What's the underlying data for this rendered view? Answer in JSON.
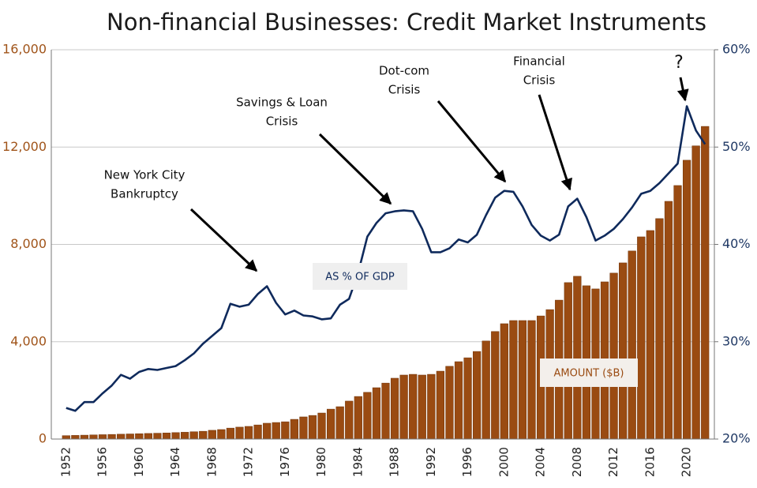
{
  "chart_data": {
    "type": "bar",
    "title": "Non-financial Businesses: Credit Market Instruments",
    "categories": [
      "1952",
      null,
      null,
      null,
      "1956",
      null,
      null,
      null,
      "1960",
      null,
      null,
      null,
      "1964",
      null,
      null,
      null,
      "1968",
      null,
      null,
      null,
      "1972",
      null,
      null,
      null,
      "1976",
      null,
      null,
      null,
      "1980",
      null,
      null,
      null,
      "1984",
      null,
      null,
      null,
      "1988",
      null,
      null,
      null,
      "1992",
      null,
      null,
      null,
      "1996",
      null,
      null,
      null,
      "2000",
      null,
      null,
      null,
      "2004",
      null,
      null,
      null,
      "2008",
      null,
      null,
      null,
      "2012",
      null,
      null,
      null,
      "2016",
      null,
      null,
      null,
      "2020",
      null,
      null
    ],
    "series": [
      {
        "name": "AMOUNT ($B)",
        "type": "bar",
        "color": "#9a4b12",
        "values": [
          140,
          150,
          160,
          170,
          180,
          190,
          200,
          210,
          220,
          230,
          240,
          250,
          265,
          280,
          300,
          320,
          360,
          390,
          450,
          490,
          520,
          580,
          650,
          680,
          710,
          810,
          910,
          970,
          1070,
          1230,
          1330,
          1560,
          1750,
          1920,
          2110,
          2300,
          2500,
          2630,
          2660,
          2630,
          2660,
          2790,
          2990,
          3180,
          3340,
          3600,
          4030,
          4420,
          4740,
          4870,
          4870,
          4870,
          5060,
          5320,
          5710,
          6430,
          6690,
          6300,
          6170,
          6460,
          6820,
          7240,
          7730,
          8310,
          8570,
          9060,
          9770,
          10420,
          11460,
          12050,
          12850
        ]
      },
      {
        "name": "AS % OF GDP",
        "type": "line",
        "axis": "y2",
        "color": "#0f2a5c",
        "values": [
          23.2,
          22.9,
          23.8,
          23.8,
          24.7,
          25.5,
          26.6,
          26.2,
          26.9,
          27.2,
          27.1,
          27.3,
          27.5,
          28.1,
          28.8,
          29.8,
          30.6,
          31.4,
          33.9,
          33.6,
          33.8,
          34.9,
          35.7,
          34.0,
          32.8,
          33.2,
          32.7,
          32.6,
          32.3,
          32.4,
          33.8,
          34.4,
          37.1,
          40.8,
          42.2,
          43.2,
          43.4,
          43.5,
          43.4,
          41.6,
          39.2,
          39.2,
          39.6,
          40.5,
          40.2,
          41.0,
          43.0,
          44.8,
          45.5,
          45.4,
          43.9,
          42.0,
          40.9,
          40.4,
          41.0,
          43.9,
          44.7,
          42.8,
          40.4,
          40.9,
          41.6,
          42.6,
          43.8,
          45.2,
          45.5,
          46.3,
          47.3,
          48.3,
          54.2,
          51.7,
          50.3
        ]
      }
    ],
    "ylim": [
      0,
      16000
    ],
    "yticks": [
      0,
      {
        "value": 4000,
        "label": "4,000"
      },
      {
        "value": 8000,
        "label": "8,000"
      },
      {
        "value": 12000,
        "label": "12,000"
      },
      {
        "value": 16000,
        "label": "16,000"
      }
    ],
    "y2lim": [
      20,
      60
    ],
    "y2ticks": [
      {
        "value": 20,
        "label": "20%"
      },
      {
        "value": 30,
        "label": "30%"
      },
      {
        "value": 40,
        "label": "40%"
      },
      {
        "value": 50,
        "label": "50%"
      },
      {
        "value": 60,
        "label": "60%"
      }
    ],
    "grid": true,
    "annotations": [
      {
        "lines": [
          "New York City",
          "Bankruptcy"
        ]
      },
      {
        "lines": [
          "Savings & Loan",
          "Crisis"
        ]
      },
      {
        "lines": [
          "Dot-com",
          "Crisis"
        ]
      },
      {
        "lines": [
          "Financial",
          "Crisis"
        ]
      },
      {
        "lines": [
          "?"
        ]
      }
    ]
  }
}
